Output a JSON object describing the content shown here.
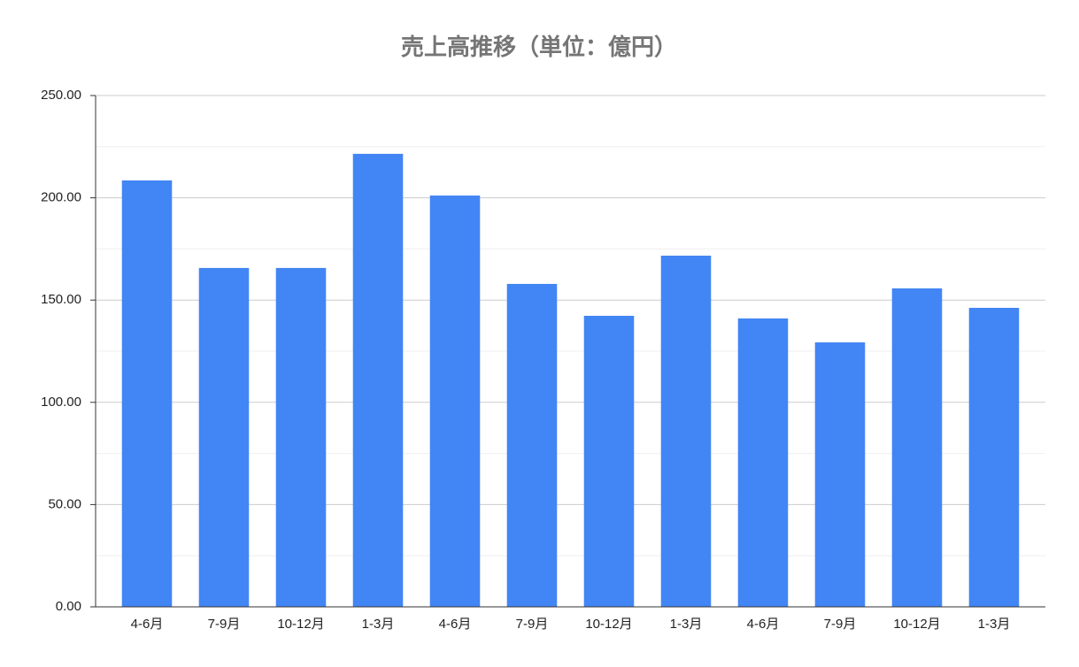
{
  "chart_data": {
    "type": "bar",
    "title": "売上高推移（単位：億円）",
    "categories": [
      "4-6月",
      "7-9月",
      "10-12月",
      "1-3月",
      "4-6月",
      "7-9月",
      "10-12月",
      "1-3月",
      "4-6月",
      "7-9月",
      "10-12月",
      "1-3月"
    ],
    "values": [
      208.5,
      165.7,
      165.7,
      221.5,
      201.1,
      157.9,
      142.3,
      171.7,
      141.0,
      129.3,
      155.7,
      146.2
    ],
    "color": "#4285f4",
    "ylim": [
      0,
      250
    ],
    "yticks": [
      {
        "value": 0,
        "label": "0.00"
      },
      {
        "value": 50,
        "label": "50.00"
      },
      {
        "value": 100,
        "label": "100.00"
      },
      {
        "value": 150,
        "label": "150.00"
      },
      {
        "value": 200,
        "label": "200.00"
      },
      {
        "value": 250,
        "label": "250.00"
      }
    ],
    "minor_yticks": [
      25,
      75,
      125,
      175,
      225
    ],
    "grid": true
  }
}
